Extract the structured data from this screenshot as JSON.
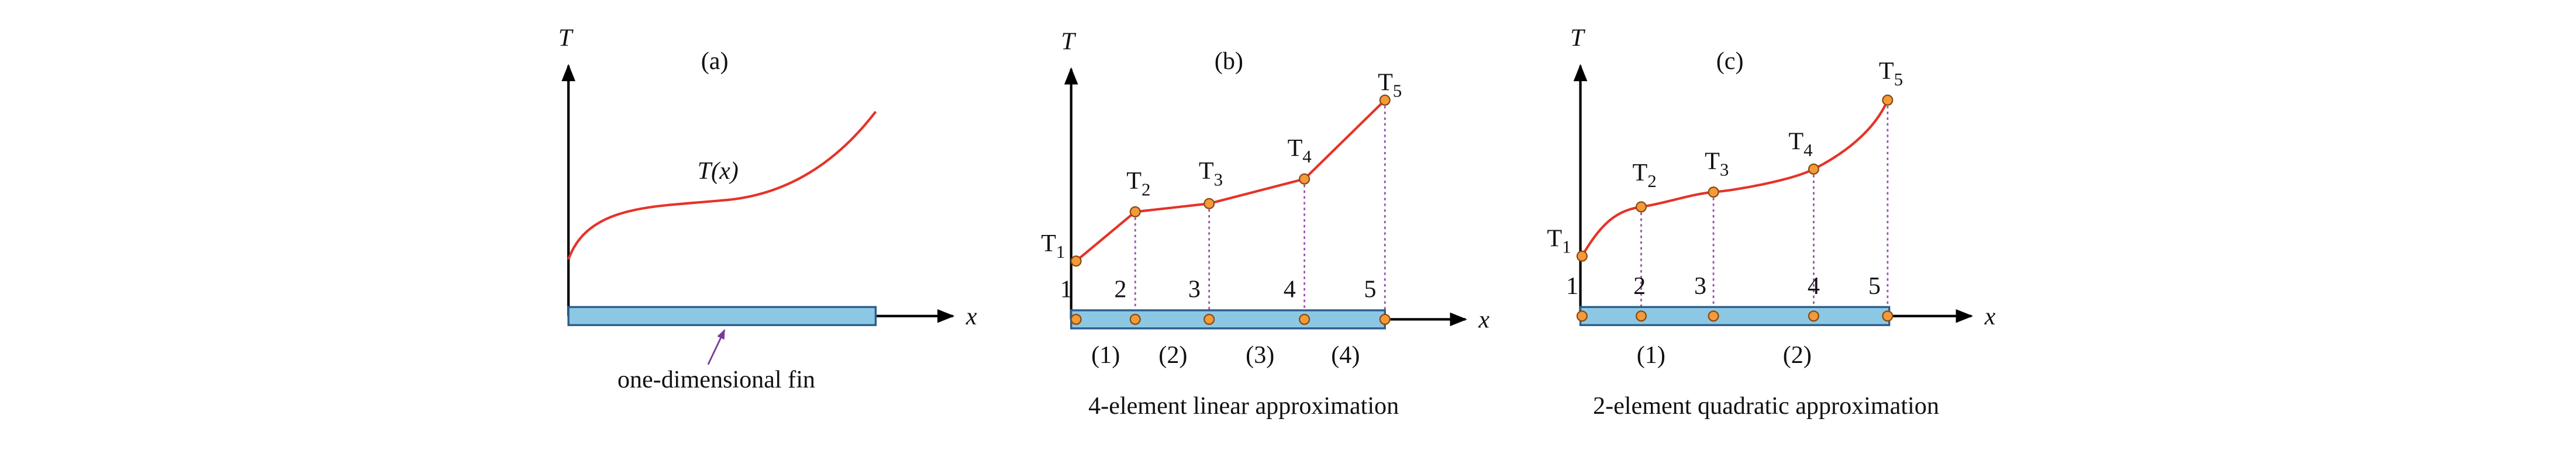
{
  "panels": [
    {
      "label": "(a)",
      "y_axis": "T",
      "x_axis": "x",
      "curve_label": "T(x)",
      "fin_label": "one-dimensional fin"
    },
    {
      "label": "(b)",
      "y_axis": "T",
      "x_axis": "x",
      "point_symbol": "T",
      "nodes": [
        "1",
        "2",
        "3",
        "4",
        "5"
      ],
      "elements": [
        "(1)",
        "(2)",
        "(3)",
        "(4)"
      ],
      "caption": "4-element linear approximation"
    },
    {
      "label": "(c)",
      "y_axis": "T",
      "x_axis": "x",
      "point_symbol": "T",
      "nodes": [
        "1",
        "2",
        "3",
        "4",
        "5"
      ],
      "elements": [
        "(1)",
        "(2)"
      ],
      "caption": "2-element quadratic approximation"
    }
  ]
}
